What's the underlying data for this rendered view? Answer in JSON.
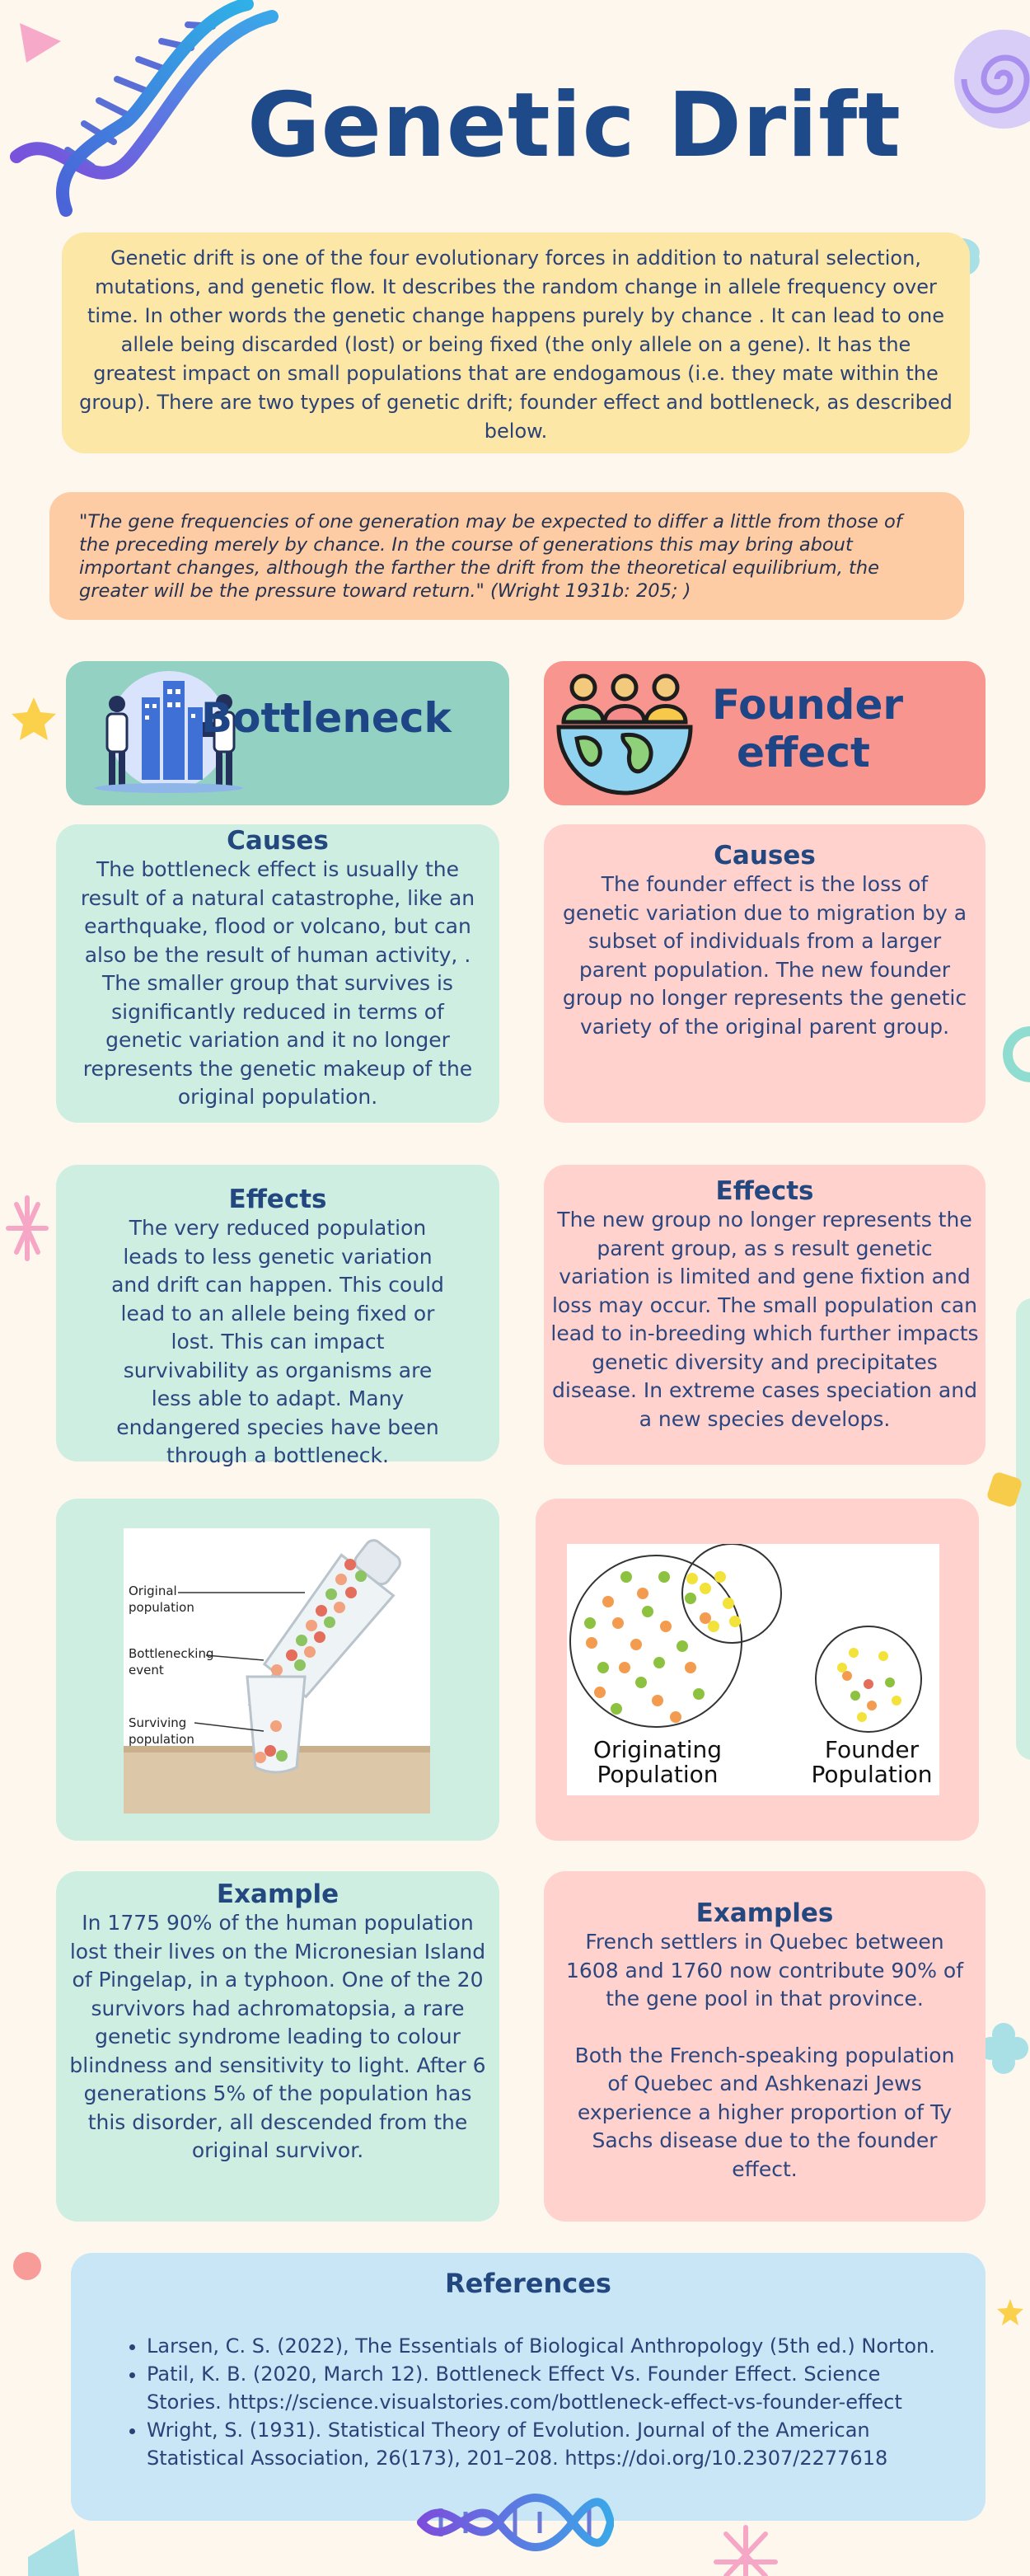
{
  "title": "Genetic Drift",
  "intro": "Genetic drift is one of the four evolutionary forces in addition to natural selection, mutations, and genetic flow. It describes the random change in allele frequency over time. In other words the genetic change happens purely by chance . It can lead to one allele being discarded (lost) or being fixed (the only allele on a gene).  It has the greatest impact on small populations that are endogamous (i.e. they mate within the group). There are two types of genetic drift; founder effect and bottleneck, as described below.",
  "quote": "\"The gene frequencies of one generation may be expected to differ a little from those of the preceding merely by chance. In the course of generations this may bring about important changes, although the farther the drift from the theoretical equilibrium, the greater will be the pressure toward return.\" (Wright 1931b: 205; )",
  "bottleneck": {
    "heading": "Bottleneck",
    "causes_title": "Causes",
    "causes_text": "The bottleneck effect is usually the result of a natural catastrophe, like an earthquake, flood or volcano, but can also be the result of human activity, . The smaller group that survives is significantly reduced in terms of genetic variation and it no longer represents the genetic makeup of the original population.",
    "effects_title": "Effects",
    "effects_text": "The very reduced population leads to less genetic variation and drift can happen. This could lead to an allele being fixed or lost. This can impact survivability as organisms are less able to adapt. Many endangered species have been through a bottleneck.",
    "diagram": {
      "label_original": "Original population",
      "label_event": "Bottlenecking event",
      "label_surviving": "Surviving population"
    },
    "example_title": "Example",
    "example_text": "In 1775 90% of the human population lost their lives on the Micronesian Island of Pingelap, in a typhoon. One of the 20 survivors had achromatopsia, a rare genetic syndrome leading to colour blindness and sensitivity to light. After 6 generations 5% of the population has this disorder, all descended from the original survivor."
  },
  "founder": {
    "heading_line1": "Founder",
    "heading_line2": "effect",
    "causes_title": "Causes",
    "causes_text": "The founder effect is the loss of genetic variation due to migration by a subset of individuals from a larger parent population. The new founder group no longer represents the genetic variety of the original parent group.",
    "effects_title": "Effects",
    "effects_text": "The new group no longer represents the parent group, as s result genetic variation is limited and gene fixtion and loss may occur. The small population can lead to in-breeding which further impacts genetic diversity and precipitates disease. In extreme cases speciation and a new species develops.",
    "diagram": {
      "label_originating": "Originating Population",
      "label_founder": "Founder Population"
    },
    "examples_title": "Examples",
    "examples_text_1": "French settlers in Quebec between 1608 and 1760 now contribute 90% of the gene pool in that province.",
    "examples_text_2": "Both the French-speaking population of Quebec and Ashkenazi Jews experience a higher proportion of Ty Sachs disease due to the founder effect."
  },
  "references": {
    "title": "References",
    "items": [
      "Larsen, C. S. (2022), The Essentials of Biological Anthropology (5th ed.) Norton.",
      "Patil, K. B. (2020, March 12). Bottleneck Effect Vs. Founder Effect. Science Stories. https://science.visualstories.com/bottleneck-effect-vs-founder-effect",
      "Wright, S. (1931). Statistical Theory of Evolution. Journal of the American Statistical Association, 26(173), 201–208. https://doi.org/10.2307/2277618"
    ]
  }
}
